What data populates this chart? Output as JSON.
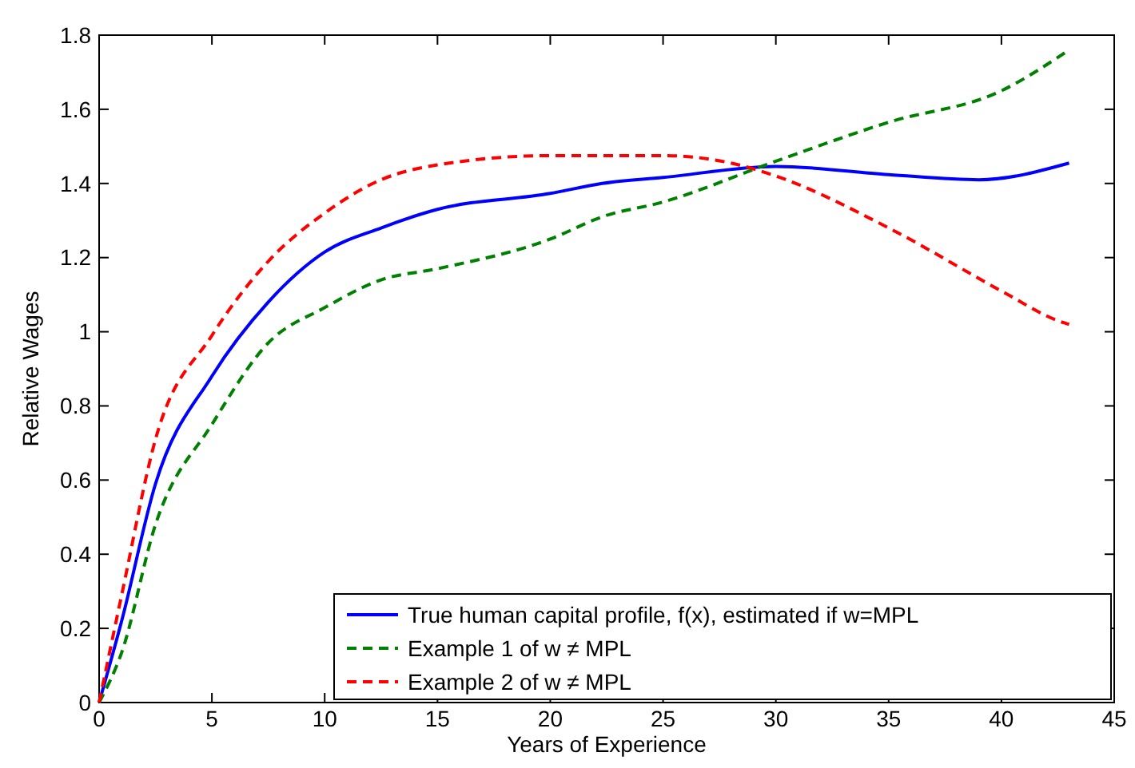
{
  "chart_data": {
    "type": "line",
    "xlabel": "Years of Experience",
    "ylabel": "Relative Wages",
    "xlim": [
      0,
      45
    ],
    "ylim": [
      0,
      1.8
    ],
    "xticks": [
      0,
      5,
      10,
      15,
      20,
      25,
      30,
      35,
      40,
      45
    ],
    "yticks": [
      0,
      0.2,
      0.4,
      0.6,
      0.8,
      1,
      1.2,
      1.4,
      1.6,
      1.8
    ],
    "legend": "bottom right",
    "grid": false,
    "series": [
      {
        "name": "True human capital profile, f(x), estimated if w=MPL",
        "color": "#0000ff",
        "line_style": "solid",
        "x": [
          0,
          1,
          2.5,
          5,
          7.5,
          10,
          12.5,
          15,
          20,
          22.3,
          25,
          30,
          35,
          39,
          43
        ],
        "values": [
          0,
          0.22,
          0.59,
          0.88,
          1.08,
          1.215,
          1.28,
          1.33,
          1.373,
          1.4,
          1.416,
          1.446,
          1.424,
          1.41,
          1.455
        ]
      },
      {
        "name": "Example 1 of w ≠ MPL",
        "color": "#008000",
        "line_style": "dashed",
        "x": [
          0,
          1,
          2.5,
          5,
          7.5,
          10,
          12.5,
          15,
          20,
          22.3,
          25,
          30,
          35,
          40,
          43
        ],
        "values": [
          0,
          0.135,
          0.48,
          0.75,
          0.97,
          1.065,
          1.14,
          1.17,
          1.25,
          1.31,
          1.35,
          1.46,
          1.565,
          1.65,
          1.76
        ]
      },
      {
        "name": "Example 2 of w ≠ MPL",
        "color": "#ff0000",
        "line_style": "dashed",
        "x": [
          0,
          1,
          2.5,
          5,
          7.5,
          10,
          12.5,
          15,
          20,
          25,
          28,
          30,
          35,
          40,
          42.5,
          43
        ],
        "values": [
          0,
          0.29,
          0.71,
          0.99,
          1.19,
          1.32,
          1.41,
          1.45,
          1.475,
          1.475,
          1.455,
          1.42,
          1.28,
          1.11,
          1.03,
          1.02
        ]
      }
    ]
  }
}
